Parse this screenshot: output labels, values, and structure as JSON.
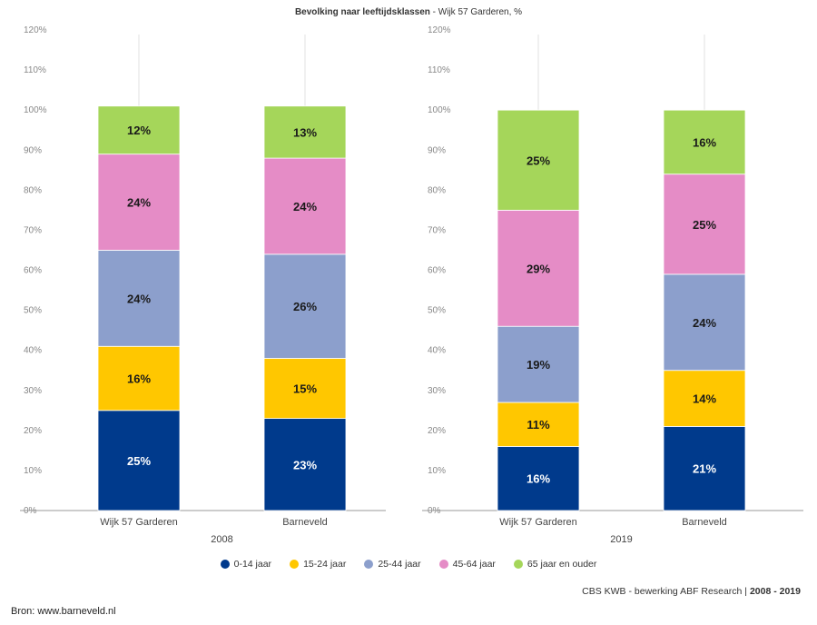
{
  "header": {
    "title_bold": "Bevolking naar leeftijdsklassen",
    "title_rest": " - Wijk 57 Garderen, %"
  },
  "chart_data": {
    "type": "bar",
    "stacked": true,
    "ylim": [
      0,
      120
    ],
    "y_ticks": [
      "0%",
      "10%",
      "20%",
      "30%",
      "40%",
      "50%",
      "60%",
      "70%",
      "80%",
      "90%",
      "100%",
      "110%",
      "120%"
    ],
    "grid": false,
    "legend_position": "bottom",
    "series": [
      {
        "name": "0-14 jaar",
        "color": "#003a8c"
      },
      {
        "name": "15-24 jaar",
        "color": "#ffc700"
      },
      {
        "name": "25-44 jaar",
        "color": "#8c9fcc"
      },
      {
        "name": "45-64 jaar",
        "color": "#e58cc6"
      },
      {
        "name": "65 jaar en ouder",
        "color": "#a5d65a"
      }
    ],
    "panels": [
      {
        "group_label": "2008",
        "categories": [
          "Wijk 57 Garderen",
          "Barneveld"
        ],
        "values": [
          [
            25,
            16,
            24,
            24,
            12
          ],
          [
            23,
            15,
            26,
            24,
            13
          ]
        ]
      },
      {
        "group_label": "2019",
        "categories": [
          "Wijk 57 Garderen",
          "Barneveld"
        ],
        "values": [
          [
            16,
            11,
            19,
            29,
            25
          ],
          [
            21,
            14,
            24,
            25,
            16
          ]
        ]
      }
    ]
  },
  "footer": {
    "credit_text": "CBS KWB - bewerking ABF Research | ",
    "credit_years": "2008 - 2019",
    "source": "Bron: www.barneveld.nl"
  }
}
